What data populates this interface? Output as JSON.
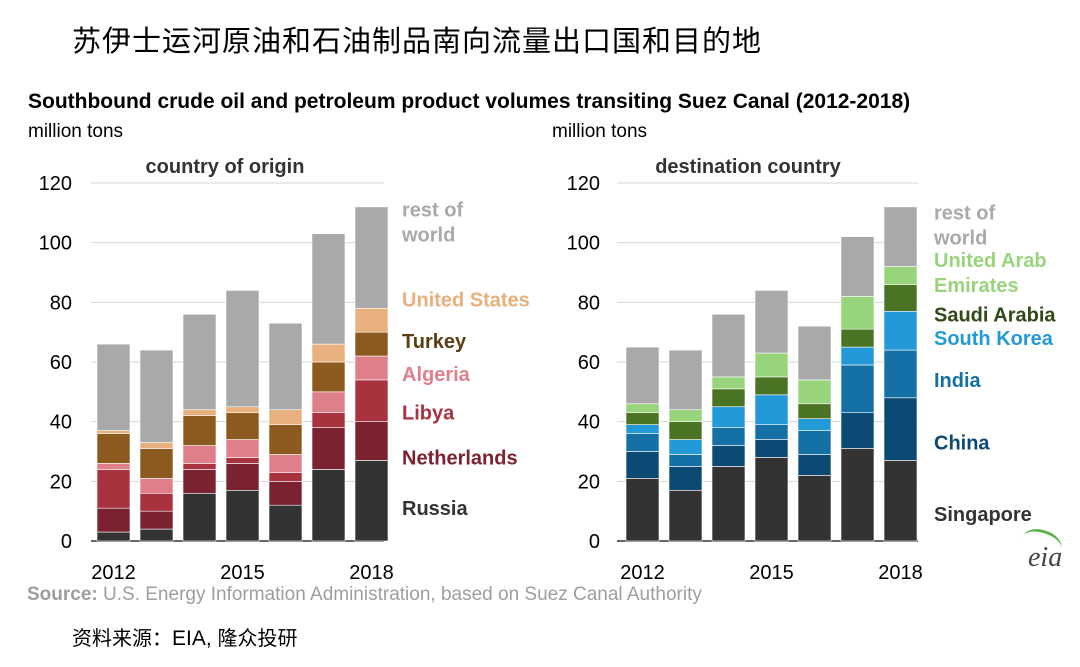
{
  "main_title": "苏伊士运河原油和石油制品南向流量出口国和目的地",
  "chart_title": "Southbound crude oil and petroleum product volumes transiting Suez Canal (2012-2018)",
  "source_label": "Source:",
  "source_text": " U.S. Energy Information Administration, based on Suez Canal Authority",
  "credit_prefix": "资料来源：",
  "credit_latin": "EIA, ",
  "credit_suffix": "隆众投研",
  "logo_text": "eia",
  "chart_data": [
    {
      "type": "bar",
      "stacked": true,
      "title": "country of origin",
      "ylabel": "million tons",
      "ylim": [
        0,
        120
      ],
      "yticks": [
        0,
        20,
        40,
        60,
        80,
        100,
        120
      ],
      "categories": [
        "2012",
        "2013",
        "2014",
        "2015",
        "2016",
        "2017",
        "2018"
      ],
      "xtick_labels": [
        "2012",
        "",
        "",
        "2015",
        "",
        "",
        "2018"
      ],
      "series": [
        {
          "name": "Russia",
          "color": "#333333",
          "label_color": "#333333",
          "values": [
            3,
            4,
            16,
            17,
            12,
            24,
            27
          ]
        },
        {
          "name": "Netherlands",
          "color": "#7b2230",
          "label_color": "#7b2230",
          "values": [
            8,
            6,
            8,
            9,
            8,
            14,
            13
          ]
        },
        {
          "name": "Libya",
          "color": "#a8323e",
          "label_color": "#a8323e",
          "values": [
            13,
            6,
            2,
            2,
            3,
            5,
            14
          ]
        },
        {
          "name": "Algeria",
          "color": "#df7f8a",
          "label_color": "#df7f8a",
          "values": [
            2,
            5,
            6,
            6,
            6,
            7,
            8
          ]
        },
        {
          "name": "Turkey",
          "color": "#8c5a1f",
          "label_color": "#5c3d11",
          "values": [
            10,
            10,
            10,
            9,
            10,
            10,
            8
          ]
        },
        {
          "name": "United States",
          "color": "#e8b07c",
          "label_color": "#e8b07c",
          "values": [
            1,
            2,
            2,
            2,
            5,
            6,
            8
          ]
        },
        {
          "name": "rest of world",
          "color": "#a9a9a9",
          "label_color": "#a9a9a9",
          "values": [
            29,
            31,
            32,
            39,
            29,
            37,
            34
          ]
        }
      ],
      "legend_lines": [
        [
          "rest of",
          "world"
        ],
        [
          "United States"
        ],
        [
          "Turkey"
        ],
        [
          "Algeria"
        ],
        [
          "Libya"
        ],
        [
          "Netherlands"
        ],
        [
          "Russia"
        ]
      ],
      "legend_anchor": [
        107,
        81,
        67,
        56,
        43,
        28,
        11
      ]
    },
    {
      "type": "bar",
      "stacked": true,
      "title": "destination country",
      "ylabel": "million tons",
      "ylim": [
        0,
        120
      ],
      "yticks": [
        0,
        20,
        40,
        60,
        80,
        100,
        120
      ],
      "categories": [
        "2012",
        "2013",
        "2014",
        "2015",
        "2016",
        "2017",
        "2018"
      ],
      "xtick_labels": [
        "2012",
        "",
        "",
        "2015",
        "",
        "",
        "2018"
      ],
      "series": [
        {
          "name": "Singapore",
          "color": "#333333",
          "label_color": "#333333",
          "values": [
            21,
            17,
            25,
            28,
            22,
            31,
            27
          ]
        },
        {
          "name": "China",
          "color": "#0c4a74",
          "label_color": "#0c4a74",
          "values": [
            9,
            8,
            7,
            6,
            7,
            12,
            21
          ]
        },
        {
          "name": "India",
          "color": "#1570a6",
          "label_color": "#1570a6",
          "values": [
            6,
            4,
            6,
            5,
            8,
            16,
            16
          ]
        },
        {
          "name": "South Korea",
          "color": "#2499d8",
          "label_color": "#2499d8",
          "values": [
            3,
            5,
            7,
            10,
            4,
            6,
            13
          ]
        },
        {
          "name": "Saudi Arabia",
          "color": "#4b7324",
          "label_color": "#2f4a14",
          "values": [
            4,
            6,
            6,
            6,
            5,
            6,
            9
          ]
        },
        {
          "name": "United Arab Emirates",
          "color": "#98d47c",
          "label_color": "#98d47c",
          "values": [
            3,
            4,
            4,
            8,
            8,
            11,
            6
          ]
        },
        {
          "name": "rest of world",
          "color": "#a9a9a9",
          "label_color": "#a9a9a9",
          "values": [
            19,
            20,
            21,
            21,
            18,
            20,
            20
          ]
        }
      ],
      "legend_lines": [
        [
          "rest of",
          "world"
        ],
        [
          "United Arab",
          "Emirates"
        ],
        [
          "Saudi Arabia"
        ],
        [
          "South Korea"
        ],
        [
          "India"
        ],
        [
          "China"
        ],
        [
          "Singapore"
        ]
      ],
      "legend_anchor": [
        106,
        90,
        76,
        68,
        54,
        33,
        9
      ]
    }
  ]
}
